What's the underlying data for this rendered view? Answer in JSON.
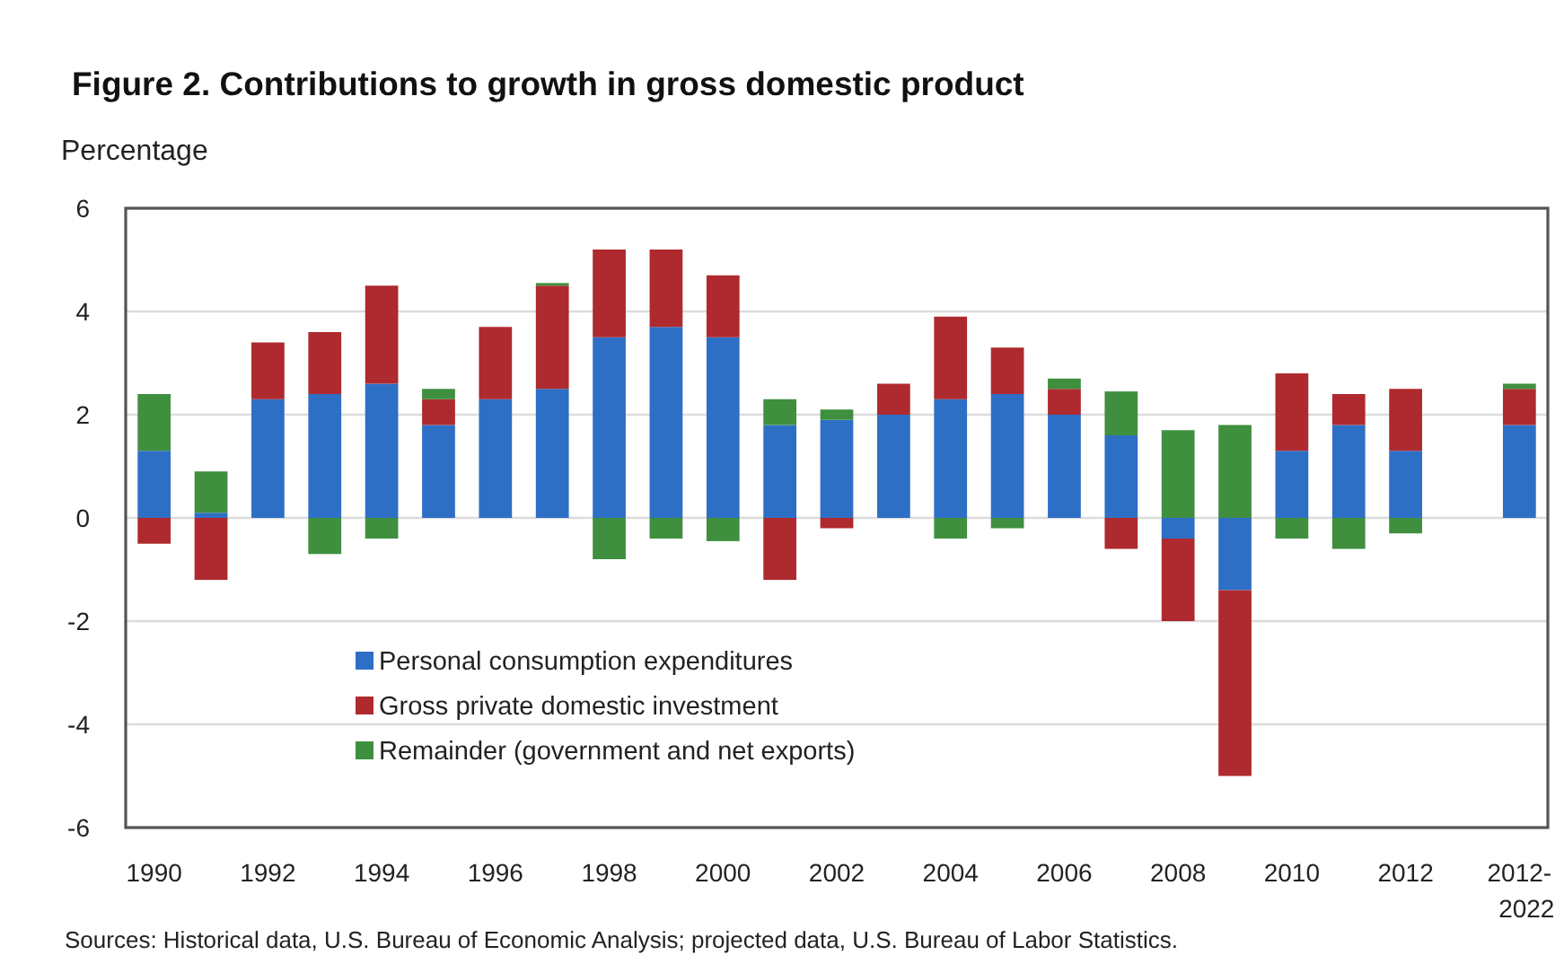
{
  "chart_data": {
    "type": "bar",
    "stacked": true,
    "title": "Figure 2. Contributions to growth in gross domestic product",
    "ylabel": "Percentage",
    "categories": [
      "1990",
      null,
      "1992",
      null,
      "1994",
      null,
      "1996",
      null,
      "1998",
      null,
      "2000",
      null,
      "2002",
      null,
      "2004",
      null,
      "2006",
      null,
      "2008",
      null,
      "2010",
      null,
      "2012",
      null,
      "2012-2022"
    ],
    "series": [
      {
        "name": "Personal consumption expenditures",
        "color": "#2e6fc6",
        "values": [
          1.3,
          0.1,
          2.3,
          2.4,
          2.6,
          1.8,
          2.3,
          2.5,
          3.5,
          3.7,
          3.5,
          1.8,
          1.9,
          2.0,
          2.3,
          2.4,
          2.0,
          1.6,
          -0.4,
          -1.4,
          1.3,
          1.8,
          1.3,
          null,
          1.8
        ]
      },
      {
        "name": "Gross private domestic investment",
        "color": "#ae2a2e",
        "values": [
          -0.5,
          -1.2,
          1.1,
          1.2,
          1.9,
          0.5,
          1.4,
          2.0,
          1.7,
          1.5,
          1.2,
          -1.2,
          -0.2,
          0.6,
          1.6,
          0.9,
          0.5,
          -0.6,
          -1.6,
          -3.6,
          1.5,
          0.6,
          1.2,
          null,
          0.7
        ]
      },
      {
        "name": "Remainder (government and net exports)",
        "color": "#3f8f3f",
        "values": [
          1.1,
          0.8,
          0,
          -0.7,
          -0.4,
          0.2,
          0,
          0.05,
          -0.8,
          -0.4,
          -0.45,
          0.5,
          0.2,
          0,
          -0.4,
          -0.2,
          0.2,
          0.85,
          1.7,
          1.8,
          -0.4,
          -0.6,
          -0.3,
          null,
          0.1
        ]
      }
    ],
    "ylim": [
      -6,
      6
    ],
    "yticks": [
      -6,
      -4,
      -2,
      0,
      2,
      4,
      6
    ],
    "grid": "y",
    "legend": "bottom left",
    "annotations": [
      "Sources: Historical data, U.S. Bureau of Economic Analysis; projected data, U.S. Bureau of Labor Statistics."
    ]
  }
}
